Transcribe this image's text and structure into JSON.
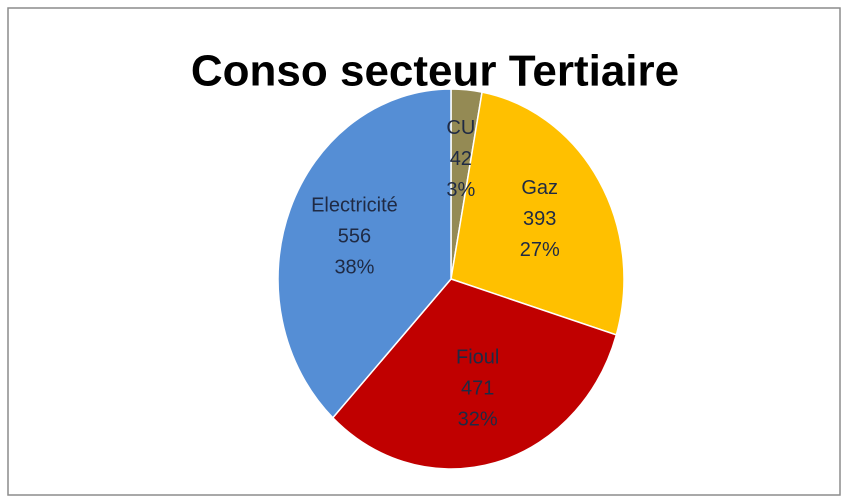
{
  "chart_data": {
    "type": "pie",
    "title": "Conso secteur Tertiaire",
    "categories": [
      "CU",
      "Gaz",
      "Fioul",
      "Electricité"
    ],
    "values": [
      42,
      393,
      471,
      556
    ],
    "percentages": [
      3,
      27,
      32,
      38
    ],
    "percentage_labels": [
      "3%",
      "27%",
      "32%",
      "38%"
    ],
    "colors": [
      "#948a54",
      "#ffc000",
      "#c00000",
      "#558ed5"
    ]
  }
}
